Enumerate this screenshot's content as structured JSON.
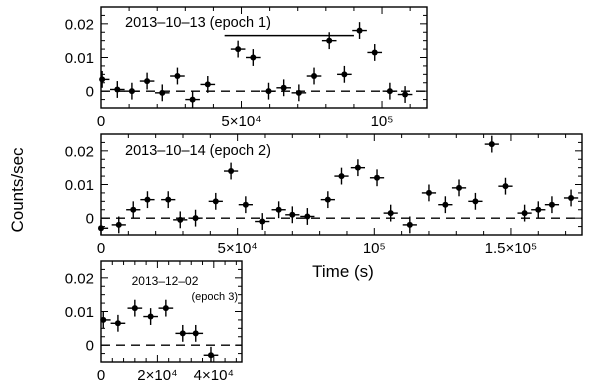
{
  "chart_data": {
    "type": "scatter",
    "shared_ylabel": "Counts/sec",
    "shared_xlabel": "Time (s)",
    "panels": [
      {
        "id": "epoch1",
        "annotation": [
          "2013–10–13 (epoch 1)"
        ],
        "xlim": [
          0,
          116000
        ],
        "ylim": [
          -0.005,
          0.025
        ],
        "xticks": [
          {
            "v": 0,
            "label": "0"
          },
          {
            "v": 50000,
            "label": "5×10⁴"
          },
          {
            "v": 100000,
            "label": "10⁵"
          }
        ],
        "yticks": [
          {
            "v": 0,
            "label": "0"
          },
          {
            "v": 0.01,
            "label": "0.01"
          },
          {
            "v": 0.02,
            "label": "0.02"
          }
        ],
        "series_line": {
          "x0": 44000,
          "x1": 90000,
          "y": 0.0165
        },
        "points": [
          {
            "x": 400,
            "y": 0.0035,
            "xerr": 2600,
            "yerr": 0.0025
          },
          {
            "x": 5800,
            "y": 0.0005,
            "xerr": 2600,
            "yerr": 0.0025
          },
          {
            "x": 11000,
            "y": 0.0,
            "xerr": 2600,
            "yerr": 0.0025
          },
          {
            "x": 16400,
            "y": 0.003,
            "xerr": 2600,
            "yerr": 0.0025
          },
          {
            "x": 21800,
            "y": -0.0005,
            "xerr": 2600,
            "yerr": 0.0025
          },
          {
            "x": 27200,
            "y": 0.0045,
            "xerr": 2600,
            "yerr": 0.0025
          },
          {
            "x": 32600,
            "y": -0.0025,
            "xerr": 2600,
            "yerr": 0.0025
          },
          {
            "x": 38000,
            "y": 0.002,
            "xerr": 2600,
            "yerr": 0.0025
          },
          {
            "x": 48800,
            "y": 0.0125,
            "xerr": 2600,
            "yerr": 0.0025
          },
          {
            "x": 54200,
            "y": 0.01,
            "xerr": 2600,
            "yerr": 0.0025
          },
          {
            "x": 59600,
            "y": 0.0,
            "xerr": 2600,
            "yerr": 0.0025
          },
          {
            "x": 65000,
            "y": 0.001,
            "xerr": 2600,
            "yerr": 0.0025
          },
          {
            "x": 70400,
            "y": -0.0005,
            "xerr": 2600,
            "yerr": 0.0025
          },
          {
            "x": 75800,
            "y": 0.0045,
            "xerr": 2600,
            "yerr": 0.0025
          },
          {
            "x": 81200,
            "y": 0.015,
            "xerr": 2600,
            "yerr": 0.0025
          },
          {
            "x": 86600,
            "y": 0.005,
            "xerr": 2600,
            "yerr": 0.0025
          },
          {
            "x": 92000,
            "y": 0.018,
            "xerr": 2600,
            "yerr": 0.0025
          },
          {
            "x": 97400,
            "y": 0.0115,
            "xerr": 2600,
            "yerr": 0.0025
          },
          {
            "x": 102800,
            "y": 0.0,
            "xerr": 2600,
            "yerr": 0.0025
          },
          {
            "x": 108200,
            "y": -0.001,
            "xerr": 2600,
            "yerr": 0.0025
          }
        ]
      },
      {
        "id": "epoch2",
        "annotation": [
          "2013–10–14 (epoch 2)"
        ],
        "xlim": [
          0,
          176000
        ],
        "ylim": [
          -0.005,
          0.025
        ],
        "xticks": [
          {
            "v": 0,
            "label": "0"
          },
          {
            "v": 50000,
            "label": "5×10⁴"
          },
          {
            "v": 100000,
            "label": "10⁵"
          },
          {
            "v": 150000,
            "label": "1.5×10⁵"
          }
        ],
        "yticks": [
          {
            "v": 0,
            "label": "0"
          },
          {
            "v": 0.01,
            "label": "0.01"
          },
          {
            "v": 0.02,
            "label": "0.02"
          }
        ],
        "points": [
          {
            "x": 0,
            "y": -0.003,
            "xerr": 2600,
            "yerr": 0.0025
          },
          {
            "x": 6500,
            "y": -0.002,
            "xerr": 2600,
            "yerr": 0.0025
          },
          {
            "x": 11800,
            "y": 0.0025,
            "xerr": 2600,
            "yerr": 0.0025
          },
          {
            "x": 17000,
            "y": 0.0055,
            "xerr": 2600,
            "yerr": 0.0025
          },
          {
            "x": 24600,
            "y": 0.0055,
            "xerr": 2600,
            "yerr": 0.0025
          },
          {
            "x": 29000,
            "y": -0.0005,
            "xerr": 2600,
            "yerr": 0.0025
          },
          {
            "x": 34600,
            "y": 0.0,
            "xerr": 2600,
            "yerr": 0.0025
          },
          {
            "x": 42000,
            "y": 0.005,
            "xerr": 2600,
            "yerr": 0.0025
          },
          {
            "x": 47600,
            "y": 0.014,
            "xerr": 2600,
            "yerr": 0.0025
          },
          {
            "x": 53000,
            "y": 0.004,
            "xerr": 2600,
            "yerr": 0.0025
          },
          {
            "x": 59000,
            "y": -0.001,
            "xerr": 2600,
            "yerr": 0.0025
          },
          {
            "x": 65000,
            "y": 0.0025,
            "xerr": 2600,
            "yerr": 0.0025
          },
          {
            "x": 70000,
            "y": 0.001,
            "xerr": 2600,
            "yerr": 0.0025
          },
          {
            "x": 75500,
            "y": 0.0005,
            "xerr": 2600,
            "yerr": 0.0025
          },
          {
            "x": 83000,
            "y": 0.0055,
            "xerr": 2600,
            "yerr": 0.0025
          },
          {
            "x": 88000,
            "y": 0.0125,
            "xerr": 2600,
            "yerr": 0.0025
          },
          {
            "x": 94000,
            "y": 0.015,
            "xerr": 2600,
            "yerr": 0.0025
          },
          {
            "x": 101000,
            "y": 0.012,
            "xerr": 2600,
            "yerr": 0.0025
          },
          {
            "x": 106000,
            "y": 0.0015,
            "xerr": 2600,
            "yerr": 0.0025
          },
          {
            "x": 113000,
            "y": -0.002,
            "xerr": 2600,
            "yerr": 0.0025
          },
          {
            "x": 120000,
            "y": 0.0075,
            "xerr": 2600,
            "yerr": 0.0025
          },
          {
            "x": 126000,
            "y": 0.004,
            "xerr": 2600,
            "yerr": 0.0025
          },
          {
            "x": 131000,
            "y": 0.009,
            "xerr": 2600,
            "yerr": 0.0025
          },
          {
            "x": 137000,
            "y": 0.005,
            "xerr": 2600,
            "yerr": 0.0025
          },
          {
            "x": 143000,
            "y": 0.022,
            "xerr": 2600,
            "yerr": 0.0025
          },
          {
            "x": 148000,
            "y": 0.0095,
            "xerr": 2600,
            "yerr": 0.0025
          },
          {
            "x": 155000,
            "y": 0.0015,
            "xerr": 2600,
            "yerr": 0.0025
          },
          {
            "x": 160000,
            "y": 0.0025,
            "xerr": 2600,
            "yerr": 0.0025
          },
          {
            "x": 165000,
            "y": 0.004,
            "xerr": 2600,
            "yerr": 0.0025
          },
          {
            "x": 172000,
            "y": 0.006,
            "xerr": 2600,
            "yerr": 0.0025
          }
        ]
      },
      {
        "id": "epoch3",
        "annotation": [
          "2013–12–02",
          "(epoch 3)"
        ],
        "xlim": [
          0,
          50000
        ],
        "ylim": [
          -0.005,
          0.025
        ],
        "xticks": [
          {
            "v": 0,
            "label": "0"
          },
          {
            "v": 20000,
            "label": "2×10⁴"
          },
          {
            "v": 40000,
            "label": "4×10⁴"
          }
        ],
        "yticks": [
          {
            "v": 0,
            "label": "0"
          },
          {
            "v": 0.01,
            "label": "0.01"
          },
          {
            "v": 0.02,
            "label": "0.02"
          }
        ],
        "points": [
          {
            "x": 800,
            "y": 0.0075,
            "xerr": 2600,
            "yerr": 0.0025
          },
          {
            "x": 6000,
            "y": 0.0065,
            "xerr": 2600,
            "yerr": 0.0025
          },
          {
            "x": 12000,
            "y": 0.011,
            "xerr": 2600,
            "yerr": 0.0025
          },
          {
            "x": 17600,
            "y": 0.0085,
            "xerr": 2600,
            "yerr": 0.0025
          },
          {
            "x": 23000,
            "y": 0.011,
            "xerr": 2600,
            "yerr": 0.0025
          },
          {
            "x": 29000,
            "y": 0.0035,
            "xerr": 2600,
            "yerr": 0.0025
          },
          {
            "x": 33600,
            "y": 0.0035,
            "xerr": 2600,
            "yerr": 0.0025
          },
          {
            "x": 39000,
            "y": -0.003,
            "xerr": 2600,
            "yerr": 0.0025
          }
        ]
      }
    ]
  }
}
